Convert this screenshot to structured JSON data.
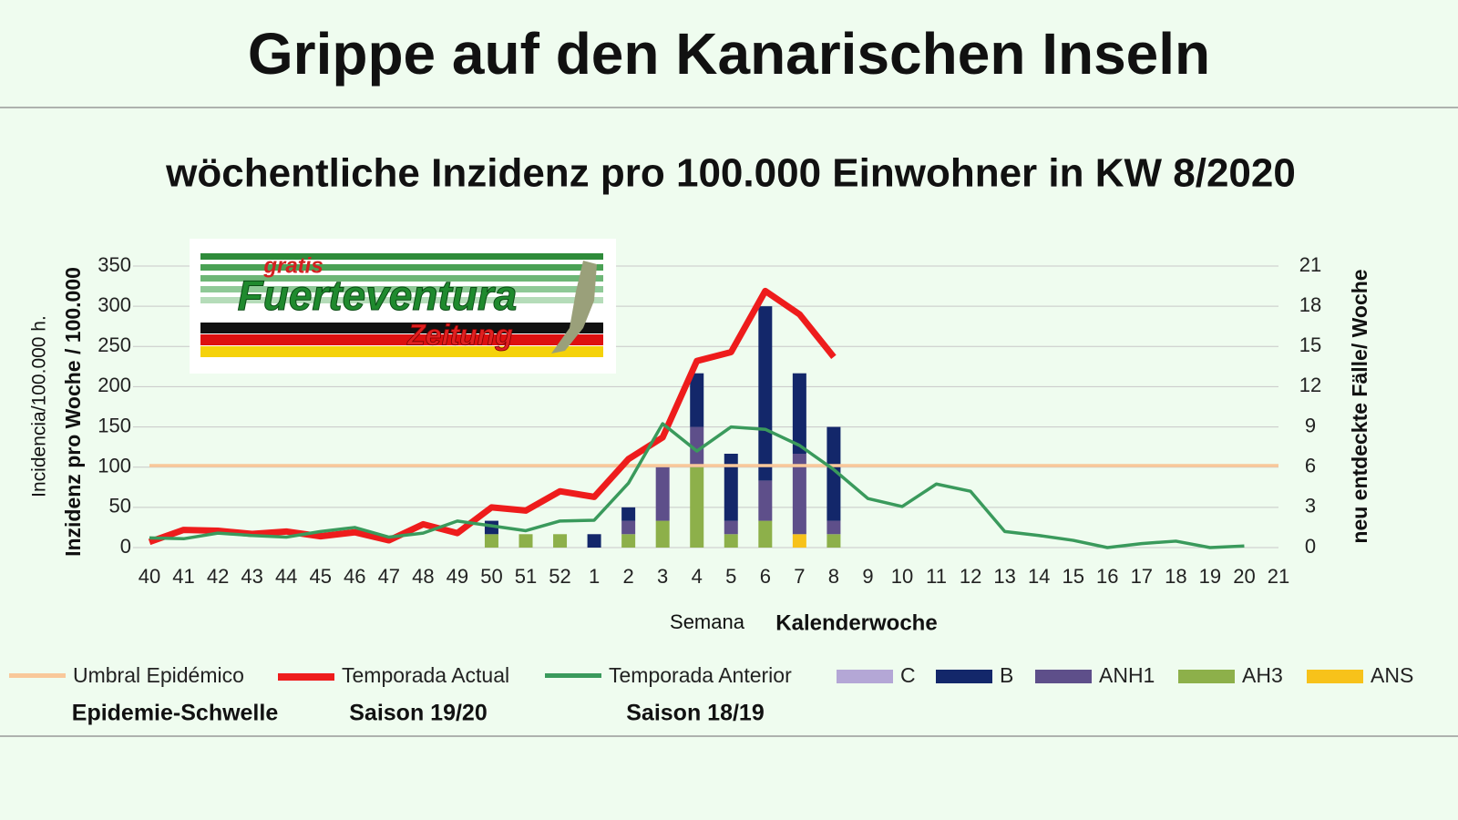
{
  "header": {
    "title": "Grippe auf den Kanarischen Inseln"
  },
  "logo": {
    "top": "gratis",
    "middle": "Fuerteventura",
    "bottom": "Zeitung"
  },
  "chart_data": {
    "type": "combo",
    "title": "wöchentliche Inzidenz pro 100.000 Einwohner in KW 8/2020",
    "y_label": "Incidencia/100.000 h.",
    "y_label_de": "Inzidenz pro Woche / 100.000",
    "y2_label": "neu entdeckte Fälle/ Woche",
    "x_label": "Semana",
    "x_label_de": "Kalenderwoche",
    "categories": [
      "40",
      "41",
      "42",
      "43",
      "44",
      "45",
      "46",
      "47",
      "48",
      "49",
      "50",
      "51",
      "52",
      "1",
      "2",
      "3",
      "4",
      "5",
      "6",
      "7",
      "8",
      "9",
      "10",
      "11",
      "12",
      "13",
      "14",
      "15",
      "16",
      "17",
      "18",
      "19",
      "20",
      "21"
    ],
    "ylim": [
      0,
      350
    ],
    "yticks": [
      0,
      50,
      100,
      150,
      200,
      250,
      300,
      350
    ],
    "y2lim": [
      0,
      21
    ],
    "y2ticks": [
      0,
      3,
      6,
      9,
      12,
      15,
      18,
      21
    ],
    "grid": true,
    "series": [
      {
        "name": "Umbral Epidémico",
        "type": "line",
        "color": "#f9c89a",
        "note": "Epidemie-Schwelle",
        "values": [
          102,
          102,
          102,
          102,
          102,
          102,
          102,
          102,
          102,
          102,
          102,
          102,
          102,
          102,
          102,
          102,
          102,
          102,
          102,
          102,
          102,
          102,
          102,
          102,
          102,
          102,
          102,
          102,
          102,
          102,
          102,
          102,
          102,
          102
        ]
      },
      {
        "name": "Temporada Actual",
        "type": "line",
        "color": "#ee1c1c",
        "note": "Saison 19/20",
        "values": [
          7,
          22,
          21,
          17,
          20,
          14,
          19,
          9,
          29,
          18,
          50,
          46,
          70,
          63,
          110,
          137,
          232,
          243,
          319,
          290,
          237,
          null,
          null,
          null,
          null,
          null,
          null,
          null,
          null,
          null,
          null,
          null,
          null,
          null
        ]
      },
      {
        "name": "Temporada Anterior",
        "type": "line",
        "color": "#3a9a5c",
        "note": "Saison 18/19",
        "values": [
          12,
          11,
          18,
          15,
          13,
          20,
          25,
          13,
          18,
          33,
          27,
          21,
          33,
          34,
          80,
          154,
          120,
          150,
          147,
          127,
          97,
          61,
          51,
          79,
          70,
          20,
          15,
          9,
          0,
          5,
          8,
          0,
          2,
          null
        ]
      },
      {
        "name": "C",
        "type": "bar",
        "axis": "y2",
        "color": "#b4a7d6",
        "values": [
          0,
          0,
          0,
          0,
          0,
          0,
          0,
          0,
          0,
          0,
          0,
          0,
          0,
          0,
          0,
          0,
          0,
          0,
          0,
          0,
          0,
          0,
          0,
          0,
          0,
          0,
          0,
          0,
          0,
          0,
          0,
          0,
          0,
          0
        ]
      },
      {
        "name": "B",
        "type": "bar",
        "axis": "y2",
        "color": "#13276a",
        "values": [
          0,
          0,
          0,
          0,
          0,
          0,
          0,
          0,
          0,
          0,
          1,
          0,
          0,
          1,
          1,
          0,
          4,
          5,
          13,
          6,
          7,
          0,
          0,
          0,
          0,
          0,
          0,
          0,
          0,
          0,
          0,
          0,
          0,
          0
        ]
      },
      {
        "name": "ANH1",
        "type": "bar",
        "axis": "y2",
        "color": "#5e4f8a",
        "values": [
          0,
          0,
          0,
          0,
          0,
          0,
          0,
          0,
          0,
          0,
          0,
          0,
          0,
          0,
          1,
          4,
          3,
          1,
          3,
          6,
          1,
          0,
          0,
          0,
          0,
          0,
          0,
          0,
          0,
          0,
          0,
          0,
          0,
          0
        ]
      },
      {
        "name": "AH3",
        "type": "bar",
        "axis": "y2",
        "color": "#8db04a",
        "values": [
          0,
          0,
          0,
          0,
          0,
          0,
          0,
          0,
          0,
          0,
          1,
          1,
          1,
          0,
          1,
          2,
          6,
          1,
          2,
          0,
          1,
          0,
          0,
          0,
          0,
          0,
          0,
          0,
          0,
          0,
          0,
          0,
          0,
          0
        ]
      },
      {
        "name": "ANS",
        "type": "bar",
        "axis": "y2",
        "color": "#f7c21a",
        "values": [
          0,
          0,
          0,
          0,
          0,
          0,
          0,
          0,
          0,
          0,
          0,
          0,
          0,
          0,
          0,
          0,
          0,
          0,
          0,
          1,
          0,
          0,
          0,
          0,
          0,
          0,
          0,
          0,
          0,
          0,
          0,
          0,
          0,
          0
        ]
      }
    ]
  }
}
